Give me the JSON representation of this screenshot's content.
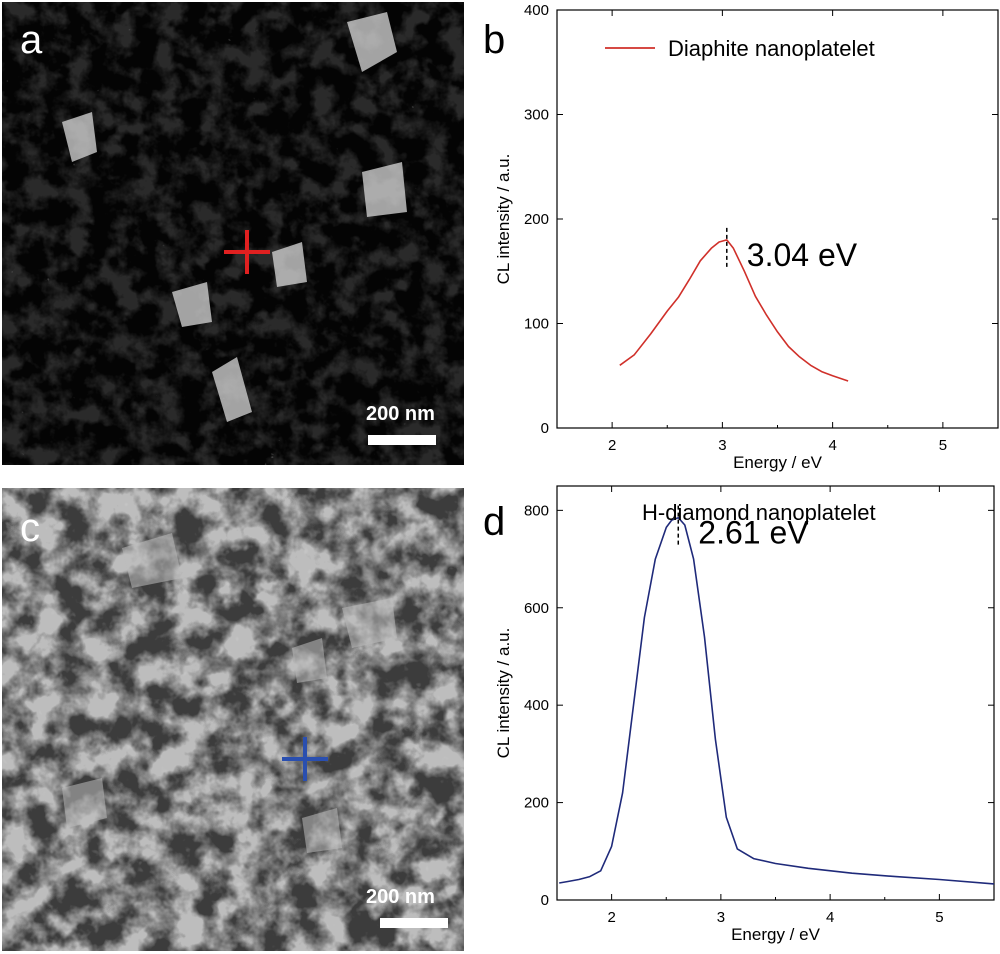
{
  "panels": {
    "a": {
      "letter": "a",
      "scale_bar": "200 nm",
      "marker_color": "#e02020"
    },
    "b": {
      "letter": "b"
    },
    "c": {
      "letter": "c",
      "scale_bar": "200 nm",
      "marker_color": "#2a4fb0"
    },
    "d": {
      "letter": "d"
    }
  },
  "chart_data": [
    {
      "type": "line",
      "panel": "b",
      "title": "",
      "xlabel": "Energy / eV",
      "ylabel": "CL intensity / a.u.",
      "xlim": [
        1.5,
        5.5
      ],
      "ylim": [
        0,
        400
      ],
      "xticks": [
        2,
        3,
        4,
        5
      ],
      "yticks": [
        0,
        100,
        200,
        300,
        400
      ],
      "legend": "top-left",
      "grid": false,
      "series": [
        {
          "name": "Diaphite nanoplatelet",
          "color": "#d0302a",
          "x": [
            2.07,
            2.2,
            2.35,
            2.5,
            2.6,
            2.7,
            2.8,
            2.9,
            2.97,
            3.04,
            3.1,
            3.2,
            3.3,
            3.4,
            3.5,
            3.6,
            3.7,
            3.8,
            3.9,
            4.0,
            4.14
          ],
          "y": [
            60,
            70,
            90,
            112,
            125,
            142,
            160,
            172,
            178,
            180,
            172,
            150,
            126,
            108,
            92,
            78,
            68,
            60,
            54,
            50,
            45
          ]
        }
      ],
      "annotations": [
        {
          "text": "3.04 eV",
          "x": 3.04,
          "y": 180
        }
      ]
    },
    {
      "type": "line",
      "panel": "d",
      "title": "",
      "xlabel": "Energy / eV",
      "ylabel": "CL intensity / a.u.",
      "xlim": [
        1.5,
        5.5
      ],
      "ylim": [
        0,
        850
      ],
      "xticks": [
        2,
        3,
        4,
        5
      ],
      "yticks": [
        0,
        200,
        400,
        600,
        800
      ],
      "legend": "top-right",
      "grid": false,
      "series": [
        {
          "name": "H-diamond nanoplatelet",
          "color": "#1f2a7a",
          "x": [
            1.52,
            1.6,
            1.7,
            1.8,
            1.9,
            2.0,
            2.1,
            2.2,
            2.3,
            2.4,
            2.5,
            2.55,
            2.61,
            2.67,
            2.75,
            2.85,
            2.95,
            3.05,
            3.15,
            3.3,
            3.5,
            3.8,
            4.2,
            4.6,
            5.0,
            5.5
          ],
          "y": [
            35,
            38,
            42,
            48,
            60,
            110,
            220,
            400,
            580,
            700,
            765,
            780,
            785,
            770,
            700,
            540,
            330,
            170,
            105,
            85,
            75,
            65,
            55,
            48,
            42,
            33
          ]
        }
      ],
      "annotations": [
        {
          "text": "2.61 eV",
          "x": 2.61,
          "y": 785
        }
      ]
    }
  ]
}
